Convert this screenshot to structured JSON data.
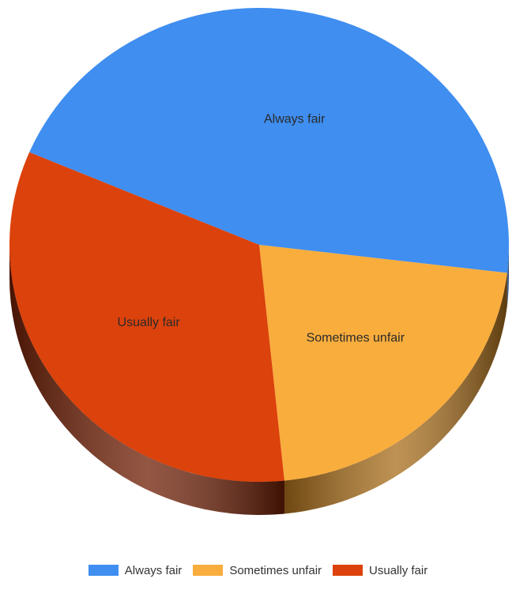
{
  "chart_data": {
    "type": "pie",
    "title": "",
    "categories": [
      "Always fair",
      "Sometimes unfair",
      "Usually fair"
    ],
    "values": [
      45.5,
      21.5,
      33.0
    ],
    "colors": [
      "#3f8ef0",
      "#f9ad3d",
      "#dc420b"
    ],
    "shadow_colors": [
      "#1f4f8f",
      "#a86d1a",
      "#6e1e04"
    ],
    "start_angle_deg": 203,
    "three_d": true,
    "legend_position": "bottom",
    "show_slice_labels": true
  },
  "legend": {
    "items": [
      {
        "label": "Always fair",
        "color": "#3f8ef0"
      },
      {
        "label": "Sometimes unfair",
        "color": "#f9ad3d"
      },
      {
        "label": "Usually fair",
        "color": "#dc420b"
      }
    ]
  }
}
